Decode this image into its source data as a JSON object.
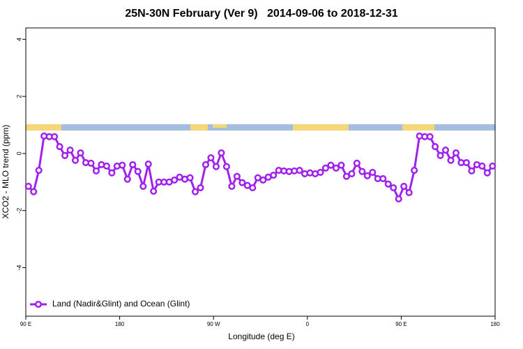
{
  "chart_data": {
    "type": "line",
    "title": "25N-30N February (Ver 9)   2014-09-06 to 2018-12-31",
    "xlabel": "Longitude (deg E)",
    "ylabel": "XCO2 - MLO trend (ppm)",
    "x": [
      92.5,
      97.5,
      102.5,
      107.5,
      112.5,
      117.5,
      122.5,
      127.5,
      132.5,
      137.5,
      142.5,
      147.5,
      152.5,
      157.5,
      162.5,
      167.5,
      172.5,
      177.5,
      182.5,
      187.5,
      192.5,
      197.5,
      202.5,
      207.5,
      212.5,
      217.5,
      222.5,
      227.5,
      232.5,
      237.5,
      242.5,
      247.5,
      252.5,
      257.5,
      262.5,
      267.5,
      272.5,
      277.5,
      282.5,
      287.5,
      292.5,
      297.5,
      302.5,
      307.5,
      312.5,
      317.5,
      322.5,
      327.5,
      332.5,
      337.5,
      342.5,
      347.5,
      352.5,
      357.5,
      362.5,
      367.5,
      372.5,
      377.5,
      382.5,
      387.5,
      392.5,
      397.5,
      402.5,
      407.5,
      412.5,
      417.5,
      422.5,
      427.5,
      432.5,
      437.5,
      442.5,
      447.5,
      452.5,
      457.5,
      462.5,
      467.5,
      472.5,
      477.5,
      482.5,
      487.5,
      492.5,
      497.5,
      502.5,
      507.5,
      512.5,
      517.5,
      522.5,
      527.5,
      532.5,
      537.5
    ],
    "series": [
      {
        "name": "Land (Nadir&Glint) and Ocean (Glint)",
        "color": "#a020f0",
        "values": [
          -1.15,
          -1.34,
          -0.59,
          0.61,
          0.59,
          0.59,
          0.24,
          -0.07,
          0.12,
          -0.24,
          0.02,
          -0.32,
          -0.34,
          -0.61,
          -0.39,
          -0.44,
          -0.68,
          -0.44,
          -0.41,
          -0.9,
          -0.39,
          -0.63,
          -1.15,
          -0.37,
          -1.32,
          -1.0,
          -1.0,
          -1.0,
          -0.93,
          -0.83,
          -0.9,
          -0.85,
          -1.34,
          -1.2,
          -0.39,
          -0.15,
          -0.46,
          0.02,
          -0.46,
          -1.15,
          -0.8,
          -1.02,
          -1.12,
          -1.2,
          -0.85,
          -0.93,
          -0.83,
          -0.76,
          -0.59,
          -0.61,
          -0.63,
          -0.61,
          -0.59,
          -0.71,
          -0.68,
          -0.71,
          -0.66,
          -0.51,
          -0.41,
          -0.51,
          -0.41,
          -0.8,
          -0.71,
          -0.34,
          -0.63,
          -0.78,
          -0.66,
          -0.88,
          -0.88,
          -1.07,
          -1.2,
          -1.59,
          -1.15,
          -1.37,
          -0.59,
          0.61,
          0.59,
          0.59,
          0.24,
          -0.07,
          0.12,
          -0.24,
          0.02,
          -0.32,
          -0.32,
          -0.61,
          -0.39,
          -0.44,
          -0.68,
          -0.44
        ]
      }
    ],
    "xlim": [
      90,
      540
    ],
    "xticks": [
      {
        "value": 90,
        "label": "90 E"
      },
      180,
      {
        "value": 270,
        "label": "90 W"
      },
      {
        "value": 360,
        "label": "0"
      },
      {
        "value": 450,
        "label": "90 E"
      },
      {
        "value": 540,
        "label": "180"
      }
    ],
    "ylim": [
      -5.7,
      4.4
    ],
    "yticks": [
      4,
      2,
      0,
      -2,
      -4
    ],
    "legend": "bottom-left"
  }
}
